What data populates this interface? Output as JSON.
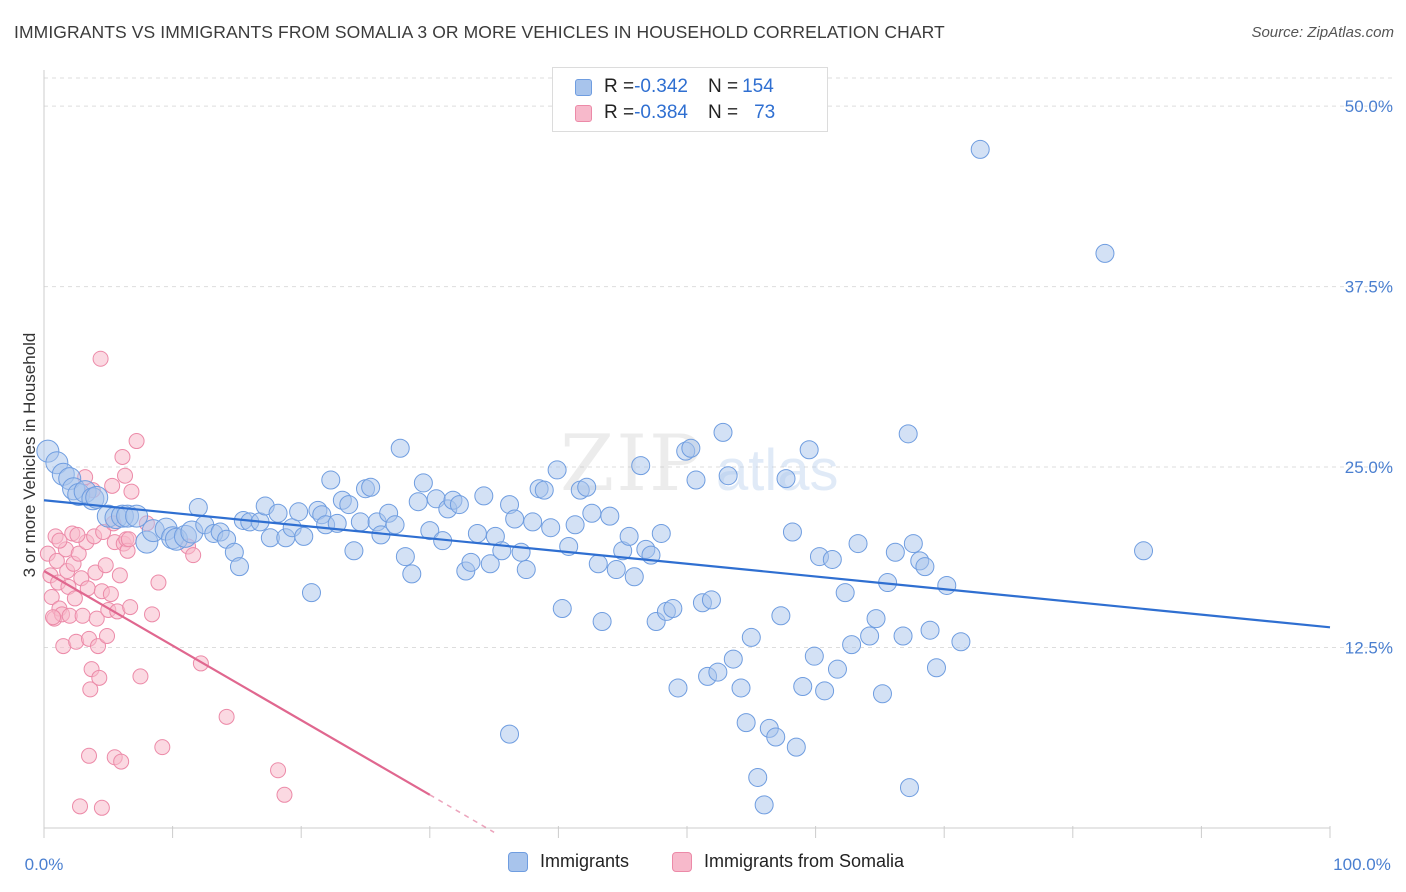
{
  "header": {
    "title": "IMMIGRANTS VS IMMIGRANTS FROM SOMALIA 3 OR MORE VEHICLES IN HOUSEHOLD CORRELATION CHART",
    "source": "Source: ZipAtlas.com"
  },
  "watermark": {
    "zip": "ZIP",
    "atlas": "atlas"
  },
  "legend": {
    "rows": [
      {
        "r_label": "R = ",
        "r_value": "-0.342",
        "n_label": "N = ",
        "n_value": "154"
      },
      {
        "r_label": "R = ",
        "r_value": "-0.384",
        "n_label": "N = ",
        "n_value": "73"
      }
    ]
  },
  "bottom_legend": {
    "series1": "Immigrants",
    "series2": "Immigrants from Somalia"
  },
  "colors": {
    "blue_fill": "#a8c4ec",
    "blue_stroke": "#6f9de0",
    "blue_line": "#2f6fd1",
    "pink_fill": "#f7b9cb",
    "pink_stroke": "#ec8aa8",
    "pink_line": "#e0678f",
    "axis_text": "#4a7fd0",
    "grid": "#dddddd"
  },
  "chart_data": {
    "type": "scatter",
    "title": "IMMIGRANTS VS IMMIGRANTS FROM SOMALIA 3 OR MORE VEHICLES IN HOUSEHOLD CORRELATION CHART",
    "xlabel": "",
    "ylabel": "3 or more Vehicles in Household",
    "xlim": [
      0,
      100
    ],
    "ylim": [
      0,
      52.5
    ],
    "x_tick_labels": [
      "0.0%",
      "100.0%"
    ],
    "y_ticks": [
      12.5,
      25.0,
      37.5,
      50.0
    ],
    "y_tick_labels": [
      "12.5%",
      "25.0%",
      "37.5%",
      "50.0%"
    ],
    "grid": true,
    "legend_position": "top-center",
    "series": [
      {
        "name": "Immigrants",
        "color": "#a8c4ec",
        "trend": {
          "x": [
            0,
            100
          ],
          "y": [
            22.7,
            13.9
          ]
        },
        "points": [
          [
            0.3,
            26.1
          ],
          [
            1.0,
            25.3
          ],
          [
            1.5,
            24.5
          ],
          [
            2.0,
            24.2
          ],
          [
            2.3,
            23.5
          ],
          [
            2.7,
            23.1
          ],
          [
            3.2,
            23.3
          ],
          [
            3.8,
            22.8
          ],
          [
            4.1,
            22.9
          ],
          [
            5.0,
            21.6
          ],
          [
            5.6,
            21.5
          ],
          [
            6.1,
            21.6
          ],
          [
            6.5,
            21.6
          ],
          [
            7.2,
            21.6
          ],
          [
            8.0,
            19.8
          ],
          [
            8.5,
            20.6
          ],
          [
            9.5,
            20.7
          ],
          [
            10.0,
            20.1
          ],
          [
            10.3,
            20.0
          ],
          [
            11.0,
            20.2
          ],
          [
            11.5,
            20.5
          ],
          [
            12.0,
            22.2
          ],
          [
            12.5,
            21.0
          ],
          [
            13.2,
            20.4
          ],
          [
            13.7,
            20.5
          ],
          [
            14.2,
            20.0
          ],
          [
            14.8,
            19.1
          ],
          [
            15.2,
            18.1
          ],
          [
            15.5,
            21.3
          ],
          [
            16.0,
            21.2
          ],
          [
            16.8,
            21.2
          ],
          [
            17.2,
            22.3
          ],
          [
            17.6,
            20.1
          ],
          [
            18.2,
            21.8
          ],
          [
            18.8,
            20.1
          ],
          [
            19.3,
            20.8
          ],
          [
            19.8,
            21.9
          ],
          [
            20.2,
            20.2
          ],
          [
            20.8,
            16.3
          ],
          [
            21.3,
            22.0
          ],
          [
            21.6,
            21.7
          ],
          [
            21.9,
            21.0
          ],
          [
            22.3,
            24.1
          ],
          [
            22.8,
            21.1
          ],
          [
            23.2,
            22.7
          ],
          [
            23.7,
            22.4
          ],
          [
            24.1,
            19.2
          ],
          [
            24.6,
            21.2
          ],
          [
            25.0,
            23.5
          ],
          [
            25.4,
            23.6
          ],
          [
            25.9,
            21.2
          ],
          [
            26.2,
            20.3
          ],
          [
            26.8,
            21.8
          ],
          [
            27.3,
            21.0
          ],
          [
            27.7,
            26.3
          ],
          [
            28.1,
            18.8
          ],
          [
            28.6,
            17.6
          ],
          [
            29.1,
            22.6
          ],
          [
            29.5,
            23.9
          ],
          [
            30.0,
            20.6
          ],
          [
            30.5,
            22.8
          ],
          [
            31.0,
            19.9
          ],
          [
            31.4,
            22.1
          ],
          [
            31.8,
            22.7
          ],
          [
            32.3,
            22.4
          ],
          [
            32.8,
            17.8
          ],
          [
            33.2,
            18.4
          ],
          [
            33.7,
            20.4
          ],
          [
            34.2,
            23.0
          ],
          [
            34.7,
            18.3
          ],
          [
            35.1,
            20.2
          ],
          [
            35.6,
            19.2
          ],
          [
            36.2,
            22.4
          ],
          [
            36.6,
            21.4
          ],
          [
            37.1,
            19.1
          ],
          [
            37.5,
            17.9
          ],
          [
            38.0,
            21.2
          ],
          [
            38.5,
            23.5
          ],
          [
            38.9,
            23.4
          ],
          [
            39.4,
            20.8
          ],
          [
            39.9,
            24.8
          ],
          [
            40.3,
            15.2
          ],
          [
            40.8,
            19.5
          ],
          [
            41.3,
            21.0
          ],
          [
            41.7,
            23.4
          ],
          [
            42.2,
            23.6
          ],
          [
            42.6,
            21.8
          ],
          [
            43.1,
            18.3
          ],
          [
            43.4,
            14.3
          ],
          [
            44.0,
            21.6
          ],
          [
            44.5,
            17.9
          ],
          [
            45.0,
            19.2
          ],
          [
            45.5,
            20.2
          ],
          [
            45.9,
            17.4
          ],
          [
            46.4,
            25.1
          ],
          [
            46.8,
            19.3
          ],
          [
            47.2,
            18.9
          ],
          [
            47.6,
            14.3
          ],
          [
            48.0,
            20.4
          ],
          [
            48.4,
            15.0
          ],
          [
            48.9,
            15.2
          ],
          [
            49.3,
            9.7
          ],
          [
            49.9,
            26.1
          ],
          [
            50.3,
            26.3
          ],
          [
            50.7,
            24.1
          ],
          [
            51.2,
            15.6
          ],
          [
            51.6,
            10.5
          ],
          [
            51.9,
            15.8
          ],
          [
            52.4,
            10.8
          ],
          [
            52.8,
            27.4
          ],
          [
            53.2,
            24.4
          ],
          [
            53.6,
            11.7
          ],
          [
            54.2,
            9.7
          ],
          [
            54.6,
            7.3
          ],
          [
            55.0,
            13.2
          ],
          [
            55.5,
            3.5
          ],
          [
            56.0,
            1.6
          ],
          [
            56.4,
            6.9
          ],
          [
            56.9,
            6.3
          ],
          [
            57.3,
            14.7
          ],
          [
            57.7,
            24.2
          ],
          [
            58.2,
            20.5
          ],
          [
            58.5,
            5.6
          ],
          [
            59.0,
            9.8
          ],
          [
            59.5,
            26.2
          ],
          [
            59.9,
            11.9
          ],
          [
            60.3,
            18.8
          ],
          [
            60.7,
            9.5
          ],
          [
            61.3,
            18.6
          ],
          [
            61.7,
            11.0
          ],
          [
            62.3,
            16.3
          ],
          [
            62.8,
            12.7
          ],
          [
            63.3,
            19.7
          ],
          [
            64.2,
            13.3
          ],
          [
            64.7,
            14.5
          ],
          [
            65.2,
            9.3
          ],
          [
            65.6,
            17.0
          ],
          [
            66.2,
            19.1
          ],
          [
            66.8,
            13.3
          ],
          [
            67.2,
            27.3
          ],
          [
            67.6,
            19.7
          ],
          [
            68.1,
            18.5
          ],
          [
            68.5,
            18.1
          ],
          [
            68.9,
            13.7
          ],
          [
            69.4,
            11.1
          ],
          [
            70.2,
            16.8
          ],
          [
            71.3,
            12.9
          ],
          [
            72.8,
            47.0
          ],
          [
            82.5,
            39.8
          ],
          [
            85.5,
            19.2
          ],
          [
            36.2,
            6.5
          ],
          [
            67.3,
            2.8
          ]
        ]
      },
      {
        "name": "Immigrants from Somalia",
        "color": "#f7b9cb",
        "trend": {
          "x": [
            0,
            30
          ],
          "y": [
            17.8,
            2.3
          ]
        },
        "trend_extension": {
          "x": [
            30,
            35
          ],
          "y": [
            2.3,
            -0.3
          ]
        },
        "points": [
          [
            0.3,
            19.0
          ],
          [
            0.5,
            17.5
          ],
          [
            0.6,
            16.0
          ],
          [
            0.8,
            14.5
          ],
          [
            0.9,
            20.2
          ],
          [
            1.0,
            18.5
          ],
          [
            1.1,
            17.0
          ],
          [
            1.2,
            15.2
          ],
          [
            1.4,
            14.8
          ],
          [
            1.5,
            12.6
          ],
          [
            1.7,
            19.3
          ],
          [
            1.8,
            17.8
          ],
          [
            1.9,
            16.7
          ],
          [
            2.0,
            14.7
          ],
          [
            2.2,
            20.4
          ],
          [
            2.3,
            18.3
          ],
          [
            2.4,
            15.9
          ],
          [
            2.5,
            12.9
          ],
          [
            2.7,
            19.0
          ],
          [
            2.9,
            17.3
          ],
          [
            3.0,
            14.7
          ],
          [
            3.2,
            24.3
          ],
          [
            3.3,
            19.8
          ],
          [
            3.4,
            16.6
          ],
          [
            3.5,
            13.1
          ],
          [
            3.6,
            9.6
          ],
          [
            3.7,
            11.0
          ],
          [
            3.8,
            23.4
          ],
          [
            3.9,
            20.2
          ],
          [
            4.0,
            17.7
          ],
          [
            4.1,
            14.5
          ],
          [
            4.2,
            12.6
          ],
          [
            4.3,
            10.4
          ],
          [
            4.4,
            32.5
          ],
          [
            4.5,
            16.4
          ],
          [
            4.6,
            20.5
          ],
          [
            4.8,
            18.2
          ],
          [
            4.9,
            13.3
          ],
          [
            5.0,
            15.1
          ],
          [
            5.2,
            16.2
          ],
          [
            5.3,
            23.7
          ],
          [
            5.4,
            21.1
          ],
          [
            5.5,
            19.8
          ],
          [
            5.7,
            15.0
          ],
          [
            5.9,
            17.5
          ],
          [
            6.1,
            25.7
          ],
          [
            6.2,
            19.7
          ],
          [
            6.3,
            24.4
          ],
          [
            6.4,
            20.0
          ],
          [
            6.5,
            19.2
          ],
          [
            6.7,
            15.3
          ],
          [
            6.8,
            23.3
          ],
          [
            7.2,
            26.8
          ],
          [
            7.5,
            10.5
          ],
          [
            8.0,
            21.1
          ],
          [
            8.4,
            14.8
          ],
          [
            8.9,
            17.0
          ],
          [
            9.2,
            5.6
          ],
          [
            11.2,
            19.5
          ],
          [
            11.6,
            18.9
          ],
          [
            12.2,
            11.4
          ],
          [
            14.2,
            7.7
          ],
          [
            18.2,
            4.0
          ],
          [
            18.7,
            2.3
          ],
          [
            2.8,
            1.5
          ],
          [
            4.5,
            1.4
          ],
          [
            5.5,
            4.9
          ],
          [
            6.0,
            4.6
          ],
          [
            1.2,
            19.9
          ],
          [
            2.6,
            20.3
          ],
          [
            6.6,
            20.0
          ],
          [
            3.5,
            5.0
          ],
          [
            0.7,
            14.6
          ]
        ]
      }
    ]
  }
}
